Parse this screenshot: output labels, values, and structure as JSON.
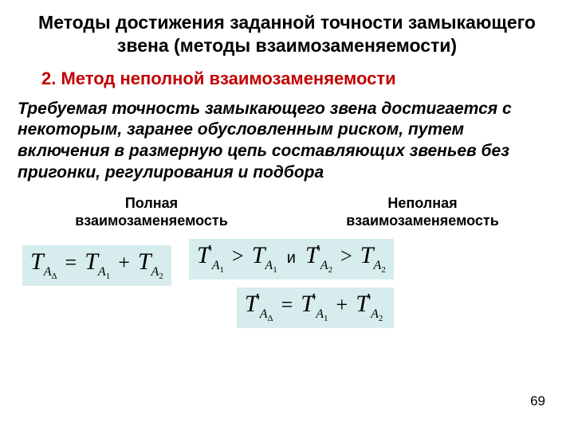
{
  "title": "Методы достижения заданной точности замыкающего звена\n(методы взаимозаменяемости)",
  "subtitle": "2. Метод неполной взаимозаменяемости",
  "body": "Требуемая точность замыкающего звена достигается с некоторым, заранее обусловленным риском, путем включения в размерную цепь составляющих звеньев без пригонки, регулирования и подбора",
  "col_left": "Полная взаимозаменяемость",
  "col_right": "Неполная взаимозаменяемость",
  "connector": "и",
  "page_number": "69",
  "colors": {
    "subtitle": "#c00000",
    "eq_bg": "#d7ecec",
    "text": "#000000",
    "page_bg": "#ffffff"
  },
  "fonts": {
    "title_size": 23,
    "subtitle_size": 22,
    "body_size": 21,
    "col_head_size": 18,
    "math_size": 30
  }
}
